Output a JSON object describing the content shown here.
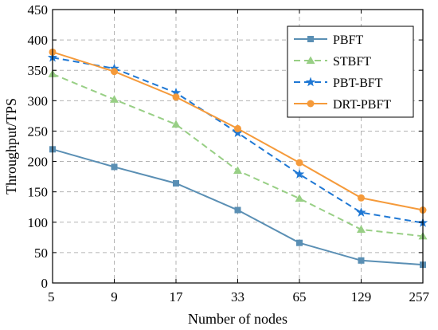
{
  "chart_data": {
    "type": "line",
    "title": "",
    "xlabel": "Number of nodes",
    "ylabel": "Throughput/TPS",
    "categories": [
      "5",
      "9",
      "17",
      "33",
      "65",
      "129",
      "257"
    ],
    "ylim": [
      0,
      450
    ],
    "yticks": [
      0,
      50,
      100,
      150,
      200,
      250,
      300,
      350,
      400,
      450
    ],
    "grid": true,
    "legend_position": "top-right",
    "series": [
      {
        "name": "PBFT",
        "values": [
          220,
          191,
          164,
          120,
          66,
          37,
          30
        ],
        "color": "#5a8fb4",
        "marker": "square",
        "dash": "solid"
      },
      {
        "name": "STBFT",
        "values": [
          344,
          302,
          261,
          185,
          139,
          88,
          77
        ],
        "color": "#98cf85",
        "marker": "triangle",
        "dash": "dashed"
      },
      {
        "name": "PBT-BFT",
        "values": [
          371,
          353,
          313,
          247,
          179,
          116,
          99
        ],
        "color": "#1f78d4",
        "marker": "star",
        "dash": "dashed"
      },
      {
        "name": "DRT-PBFT",
        "values": [
          380,
          348,
          306,
          254,
          198,
          140,
          120
        ],
        "color": "#f59a3a",
        "marker": "circle",
        "dash": "solid"
      }
    ]
  }
}
